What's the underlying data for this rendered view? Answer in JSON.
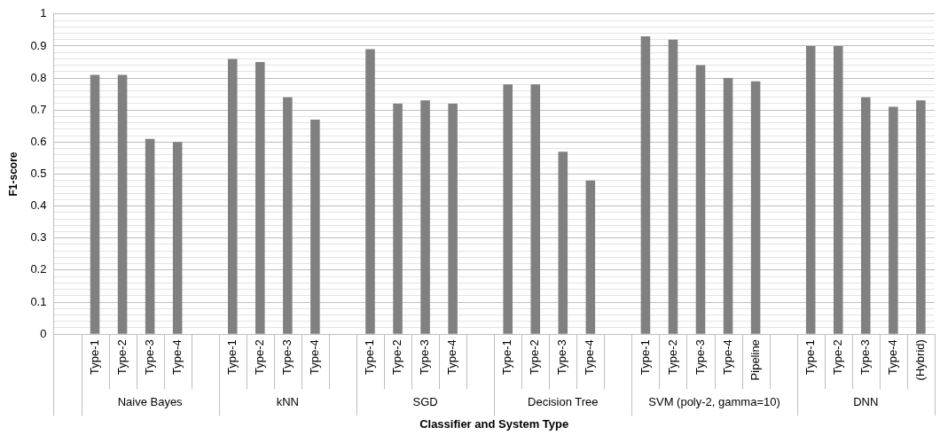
{
  "chart_data": {
    "type": "bar",
    "xlabel": "Classifier and System Type",
    "ylabel": "F1-score",
    "categories": [
      null,
      "Type-1",
      "Type-2",
      "Type-3",
      "Type-4",
      null,
      "Type-1",
      "Type-2",
      "Type-3",
      "Type-4",
      null,
      "Type-1",
      "Type-2",
      "Type-3",
      "Type-4",
      null,
      "Type-1",
      "Type-2",
      "Type-3",
      "Type-4",
      null,
      "Type-1",
      "Type-2",
      "Type-3",
      "Type-4",
      "Pipeline",
      null,
      "Type-1",
      "Type-2",
      "Type-3",
      "Type-4",
      "(Hybrid)"
    ],
    "values": [
      null,
      0.81,
      0.81,
      0.61,
      0.6,
      null,
      0.86,
      0.85,
      0.74,
      0.67,
      null,
      0.89,
      0.72,
      0.73,
      0.72,
      null,
      0.78,
      0.78,
      0.57,
      0.48,
      null,
      0.93,
      0.92,
      0.84,
      0.8,
      0.79,
      null,
      0.9,
      0.9,
      0.74,
      0.71,
      0.73
    ],
    "color": "#808080",
    "annotations": [
      "Naive Bayes",
      "kNN",
      "SGD",
      "Decision Tree",
      "SVM (poly-2, gamma=10)",
      "DNN"
    ],
    "ylim": [
      0,
      1
    ],
    "yticks": [
      0,
      {
        "value": 0.02,
        "label": null
      },
      {
        "value": 0.04,
        "label": null
      },
      {
        "value": 0.06,
        "label": null
      },
      {
        "value": 0.08,
        "label": null
      },
      0.1,
      {
        "value": 0.12,
        "label": null
      },
      {
        "value": 0.14,
        "label": null
      },
      {
        "value": 0.16,
        "label": null
      },
      {
        "value": 0.18,
        "label": null
      },
      0.2,
      {
        "value": 0.22,
        "label": null
      },
      {
        "value": 0.24,
        "label": null
      },
      {
        "value": 0.26,
        "label": null
      },
      {
        "value": 0.28,
        "label": null
      },
      0.3,
      {
        "value": 0.32,
        "label": null
      },
      {
        "value": 0.34,
        "label": null
      },
      {
        "value": 0.36,
        "label": null
      },
      {
        "value": 0.38,
        "label": null
      },
      0.4,
      {
        "value": 0.42,
        "label": null
      },
      {
        "value": 0.44,
        "label": null
      },
      {
        "value": 0.46,
        "label": null
      },
      {
        "value": 0.48,
        "label": null
      },
      0.5,
      {
        "value": 0.52,
        "label": null
      },
      {
        "value": 0.54,
        "label": null
      },
      {
        "value": 0.56,
        "label": null
      },
      {
        "value": 0.58,
        "label": null
      },
      0.6,
      {
        "value": 0.62,
        "label": null
      },
      {
        "value": 0.64,
        "label": null
      },
      {
        "value": 0.66,
        "label": null
      },
      {
        "value": 0.68,
        "label": null
      },
      0.7,
      {
        "value": 0.72,
        "label": null
      },
      {
        "value": 0.74,
        "label": null
      },
      {
        "value": 0.76,
        "label": null
      },
      {
        "value": 0.78,
        "label": null
      },
      0.8,
      {
        "value": 0.82,
        "label": null
      },
      {
        "value": 0.84,
        "label": null
      },
      {
        "value": 0.86,
        "label": null
      },
      {
        "value": 0.88,
        "label": null
      },
      0.9,
      {
        "value": 0.92,
        "label": null
      },
      {
        "value": 0.94,
        "label": null
      },
      {
        "value": 0.96,
        "label": null
      },
      {
        "value": 0.98,
        "label": null
      },
      1
    ],
    "grid": "y",
    "legend": false
  }
}
